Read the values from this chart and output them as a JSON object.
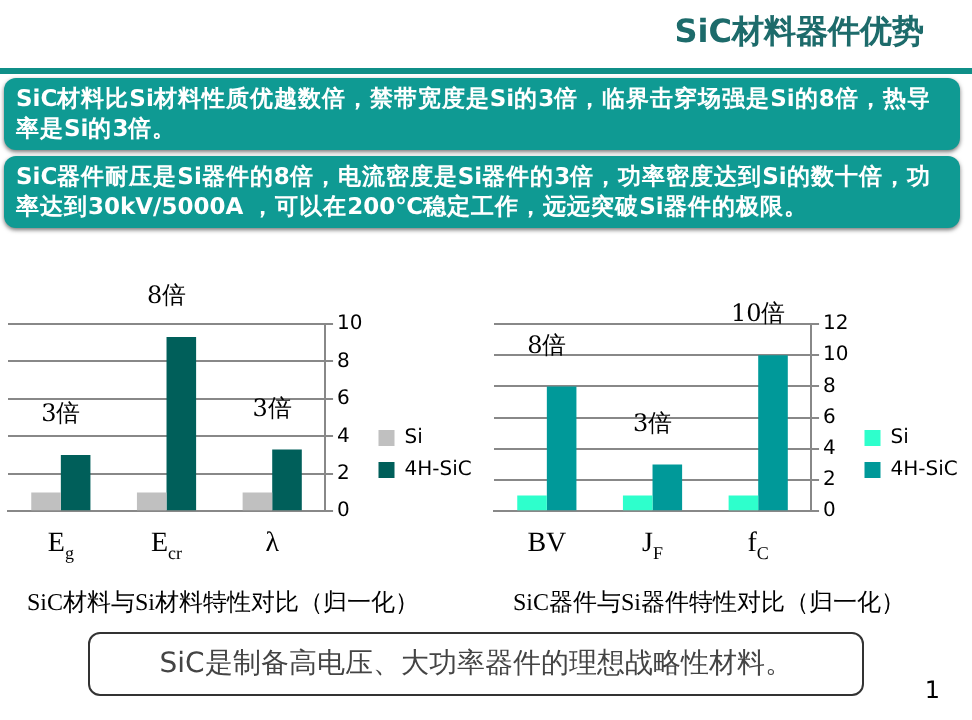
{
  "chart_data": [
    {
      "type": "other",
      "title": "SiC材料器件优势",
      "annotations": [
        "SiC材料比Si材料性质优越数倍，禁带宽度是Si的3倍，临界击穿场强是Si的8倍，热导率是Si的3倍。",
        "SiC器件耐压是Si器件的8倍，电流密度是Si器件的3倍，功率密度达到Si的数十倍，功率达到30kV/5000A ，可以在200℃稳定工作，远远突破Si器件的极限。"
      ]
    },
    {
      "type": "bar",
      "categories": [
        "E$_{g}$",
        "E$_{cr}$",
        "λ"
      ],
      "xlabel": "SiC材料与Si材料特性对比（归一化）",
      "ylim": [
        0,
        10
      ],
      "yticks": [
        0,
        2,
        4,
        6,
        8,
        10
      ],
      "grid": "y",
      "legend": "right",
      "annotations": [
        "3倍",
        "8倍",
        "3倍"
      ],
      "series": [
        {
          "name": "Si",
          "color": "#c0c0c0",
          "values": [
            1,
            1,
            1
          ]
        },
        {
          "name": "4H-SiC",
          "color": "#005f5a",
          "values": [
            3,
            9.3,
            3.3
          ]
        }
      ]
    },
    {
      "type": "bar",
      "categories": [
        "BV",
        "J$_{F}$",
        "f$_{C}$"
      ],
      "xlabel": "SiC器件与Si器件特性对比（归一化）",
      "ylim": [
        0,
        12
      ],
      "yticks": [
        0,
        2,
        4,
        6,
        8,
        10,
        12
      ],
      "grid": "y",
      "legend": "right",
      "annotations": [
        "8倍",
        "3倍",
        "10倍"
      ],
      "series": [
        {
          "name": "Si",
          "color": "#2effcc",
          "values": [
            1,
            1,
            1
          ]
        },
        {
          "name": "4H-SiC",
          "color": "#009999",
          "values": [
            8,
            3,
            10
          ]
        }
      ]
    },
    {
      "type": "other",
      "annotations": [
        "SiC是制备高电压、大功率器件的理想战略性材料。",
        "1"
      ]
    }
  ]
}
